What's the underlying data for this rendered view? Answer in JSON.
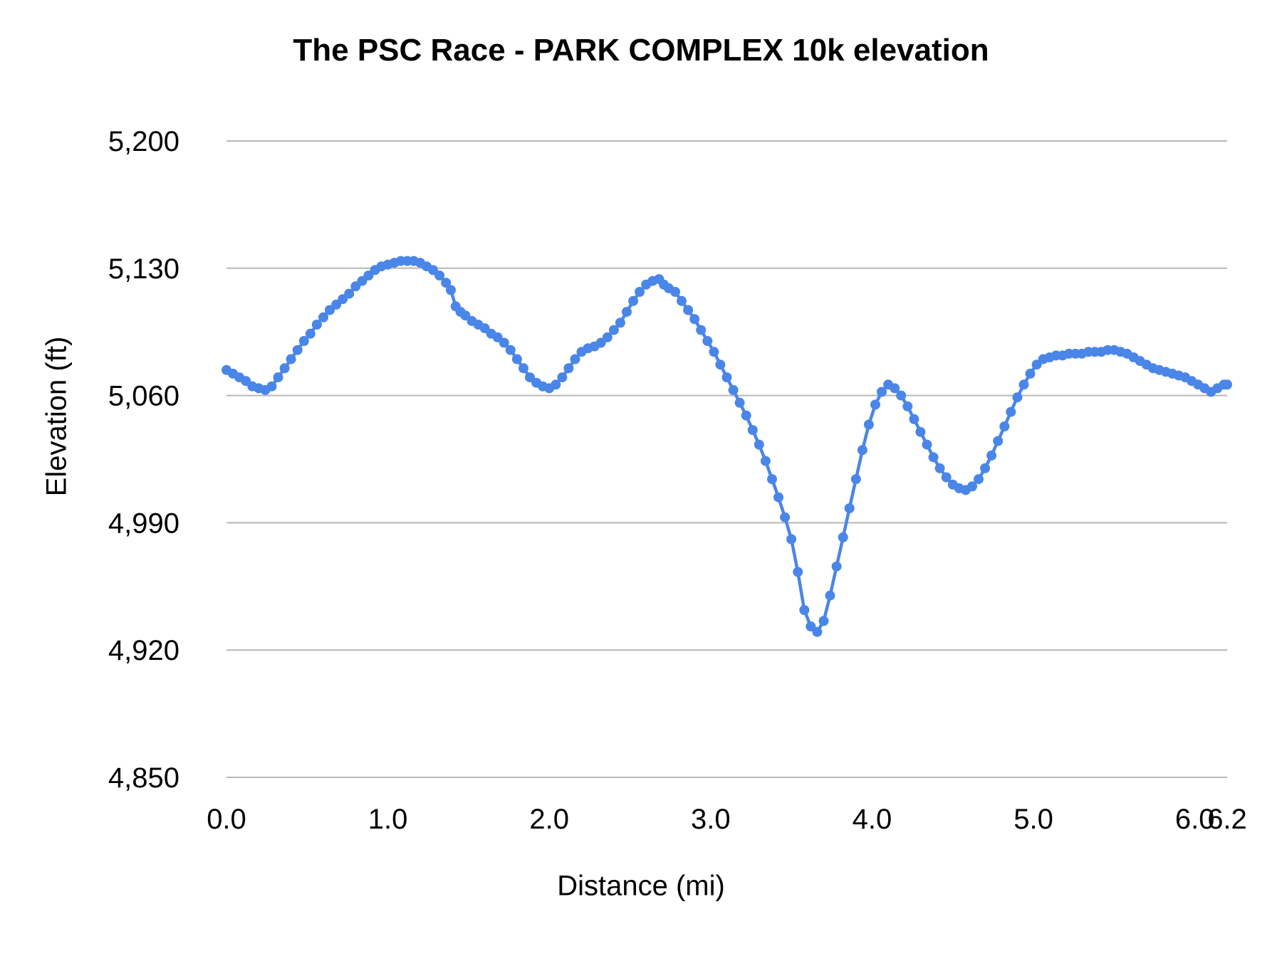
{
  "chart": {
    "title": "The PSC Race - PARK COMPLEX 10k elevation",
    "x_axis_title": "Distance (mi)",
    "y_axis_title": "Elevation (ft)"
  },
  "chart_data": {
    "type": "line",
    "title": "The PSC Race - PARK COMPLEX 10k elevation",
    "xlabel": "Distance (mi)",
    "ylabel": "Elevation (ft)",
    "xlim": [
      0,
      6.2
    ],
    "ylim": [
      4850,
      5200
    ],
    "grid": "horizontal-only",
    "legend": "none",
    "background": "#ffffff",
    "gridline_color": "#b7b7b7",
    "text_color": "#000000",
    "x_ticks": [
      {
        "value": 0.0,
        "label": "0.0"
      },
      {
        "value": 1.0,
        "label": "1.0"
      },
      {
        "value": 2.0,
        "label": "2.0"
      },
      {
        "value": 3.0,
        "label": "3.0"
      },
      {
        "value": 4.0,
        "label": "4.0"
      },
      {
        "value": 5.0,
        "label": "5.0"
      },
      {
        "value": 6.0,
        "label": "6.0"
      },
      {
        "value": 6.2,
        "label": "6.2"
      }
    ],
    "y_ticks": [
      {
        "value": 5200,
        "label": "5,200"
      },
      {
        "value": 5130,
        "label": "5,130"
      },
      {
        "value": 5060,
        "label": "5,060"
      },
      {
        "value": 4990,
        "label": "4,990"
      },
      {
        "value": 4920,
        "label": "4,920"
      },
      {
        "value": 4850,
        "label": "4,850"
      }
    ],
    "series": [
      {
        "name": "Elevation",
        "color": "#4a86e8",
        "marker": "circle",
        "marker_radius": 7,
        "line_width": 4.5,
        "points": [
          [
            0,
            5074
          ],
          [
            0.04,
            5072
          ],
          [
            0.08,
            5070
          ],
          [
            0.12,
            5068
          ],
          [
            0.16,
            5065
          ],
          [
            0.2,
            5064
          ],
          [
            0.24,
            5063
          ],
          [
            0.28,
            5065
          ],
          [
            0.32,
            5070
          ],
          [
            0.36,
            5075
          ],
          [
            0.4,
            5080
          ],
          [
            0.44,
            5085
          ],
          [
            0.48,
            5090
          ],
          [
            0.52,
            5094
          ],
          [
            0.56,
            5099
          ],
          [
            0.6,
            5103
          ],
          [
            0.64,
            5107
          ],
          [
            0.68,
            5110
          ],
          [
            0.72,
            5113
          ],
          [
            0.76,
            5116
          ],
          [
            0.8,
            5120
          ],
          [
            0.84,
            5123
          ],
          [
            0.88,
            5126
          ],
          [
            0.92,
            5129
          ],
          [
            0.96,
            5131
          ],
          [
            1,
            5132
          ],
          [
            1.04,
            5133
          ],
          [
            1.08,
            5134
          ],
          [
            1.12,
            5134
          ],
          [
            1.16,
            5134
          ],
          [
            1.2,
            5133
          ],
          [
            1.24,
            5131
          ],
          [
            1.28,
            5129
          ],
          [
            1.32,
            5126
          ],
          [
            1.36,
            5122
          ],
          [
            1.39,
            5118
          ],
          [
            1.42,
            5109
          ],
          [
            1.45,
            5106
          ],
          [
            1.48,
            5104
          ],
          [
            1.52,
            5101
          ],
          [
            1.56,
            5099
          ],
          [
            1.6,
            5097
          ],
          [
            1.64,
            5094
          ],
          [
            1.68,
            5092
          ],
          [
            1.72,
            5089
          ],
          [
            1.76,
            5085
          ],
          [
            1.8,
            5080
          ],
          [
            1.84,
            5075
          ],
          [
            1.88,
            5070
          ],
          [
            1.92,
            5067
          ],
          [
            1.96,
            5065
          ],
          [
            2,
            5064
          ],
          [
            2.04,
            5066
          ],
          [
            2.08,
            5070
          ],
          [
            2.12,
            5075
          ],
          [
            2.16,
            5080
          ],
          [
            2.2,
            5084
          ],
          [
            2.24,
            5086
          ],
          [
            2.28,
            5087
          ],
          [
            2.32,
            5089
          ],
          [
            2.36,
            5092
          ],
          [
            2.4,
            5096
          ],
          [
            2.44,
            5100
          ],
          [
            2.48,
            5106
          ],
          [
            2.52,
            5112
          ],
          [
            2.56,
            5117
          ],
          [
            2.6,
            5121
          ],
          [
            2.64,
            5123
          ],
          [
            2.68,
            5124
          ],
          [
            2.71,
            5121
          ],
          [
            2.74,
            5119
          ],
          [
            2.78,
            5117
          ],
          [
            2.82,
            5112
          ],
          [
            2.86,
            5107
          ],
          [
            2.9,
            5102
          ],
          [
            2.94,
            5096
          ],
          [
            2.98,
            5090
          ],
          [
            3.02,
            5084
          ],
          [
            3.06,
            5077
          ],
          [
            3.1,
            5070
          ],
          [
            3.14,
            5063
          ],
          [
            3.18,
            5056
          ],
          [
            3.22,
            5049
          ],
          [
            3.26,
            5041
          ],
          [
            3.3,
            5033
          ],
          [
            3.34,
            5024
          ],
          [
            3.38,
            5014
          ],
          [
            3.42,
            5004
          ],
          [
            3.46,
            4993
          ],
          [
            3.5,
            4981
          ],
          [
            3.54,
            4963
          ],
          [
            3.58,
            4942
          ],
          [
            3.62,
            4933
          ],
          [
            3.66,
            4930
          ],
          [
            3.7,
            4936
          ],
          [
            3.74,
            4950
          ],
          [
            3.78,
            4966
          ],
          [
            3.82,
            4982
          ],
          [
            3.86,
            4998
          ],
          [
            3.9,
            5014
          ],
          [
            3.94,
            5030
          ],
          [
            3.98,
            5044
          ],
          [
            4.02,
            5055
          ],
          [
            4.06,
            5062
          ],
          [
            4.1,
            5066
          ],
          [
            4.14,
            5064
          ],
          [
            4.18,
            5060
          ],
          [
            4.22,
            5054
          ],
          [
            4.26,
            5047
          ],
          [
            4.3,
            5040
          ],
          [
            4.34,
            5033
          ],
          [
            4.38,
            5026
          ],
          [
            4.42,
            5020
          ],
          [
            4.46,
            5015
          ],
          [
            4.5,
            5011
          ],
          [
            4.54,
            5009
          ],
          [
            4.58,
            5008
          ],
          [
            4.62,
            5010
          ],
          [
            4.66,
            5014
          ],
          [
            4.7,
            5020
          ],
          [
            4.74,
            5027
          ],
          [
            4.78,
            5035
          ],
          [
            4.82,
            5043
          ],
          [
            4.86,
            5051
          ],
          [
            4.9,
            5059
          ],
          [
            4.94,
            5066
          ],
          [
            4.98,
            5072
          ],
          [
            5.02,
            5077
          ],
          [
            5.06,
            5080
          ],
          [
            5.1,
            5081
          ],
          [
            5.14,
            5082
          ],
          [
            5.18,
            5082
          ],
          [
            5.22,
            5083
          ],
          [
            5.26,
            5083
          ],
          [
            5.3,
            5083
          ],
          [
            5.34,
            5084
          ],
          [
            5.38,
            5084
          ],
          [
            5.42,
            5084
          ],
          [
            5.46,
            5085
          ],
          [
            5.5,
            5085
          ],
          [
            5.54,
            5084
          ],
          [
            5.58,
            5083
          ],
          [
            5.62,
            5081
          ],
          [
            5.66,
            5079
          ],
          [
            5.7,
            5077
          ],
          [
            5.74,
            5075
          ],
          [
            5.78,
            5074
          ],
          [
            5.82,
            5073
          ],
          [
            5.86,
            5072
          ],
          [
            5.9,
            5071
          ],
          [
            5.94,
            5070
          ],
          [
            5.98,
            5068
          ],
          [
            6.02,
            5066
          ],
          [
            6.06,
            5064
          ],
          [
            6.1,
            5062
          ],
          [
            6.14,
            5064
          ],
          [
            6.18,
            5066
          ],
          [
            6.2,
            5066
          ]
        ]
      }
    ]
  }
}
